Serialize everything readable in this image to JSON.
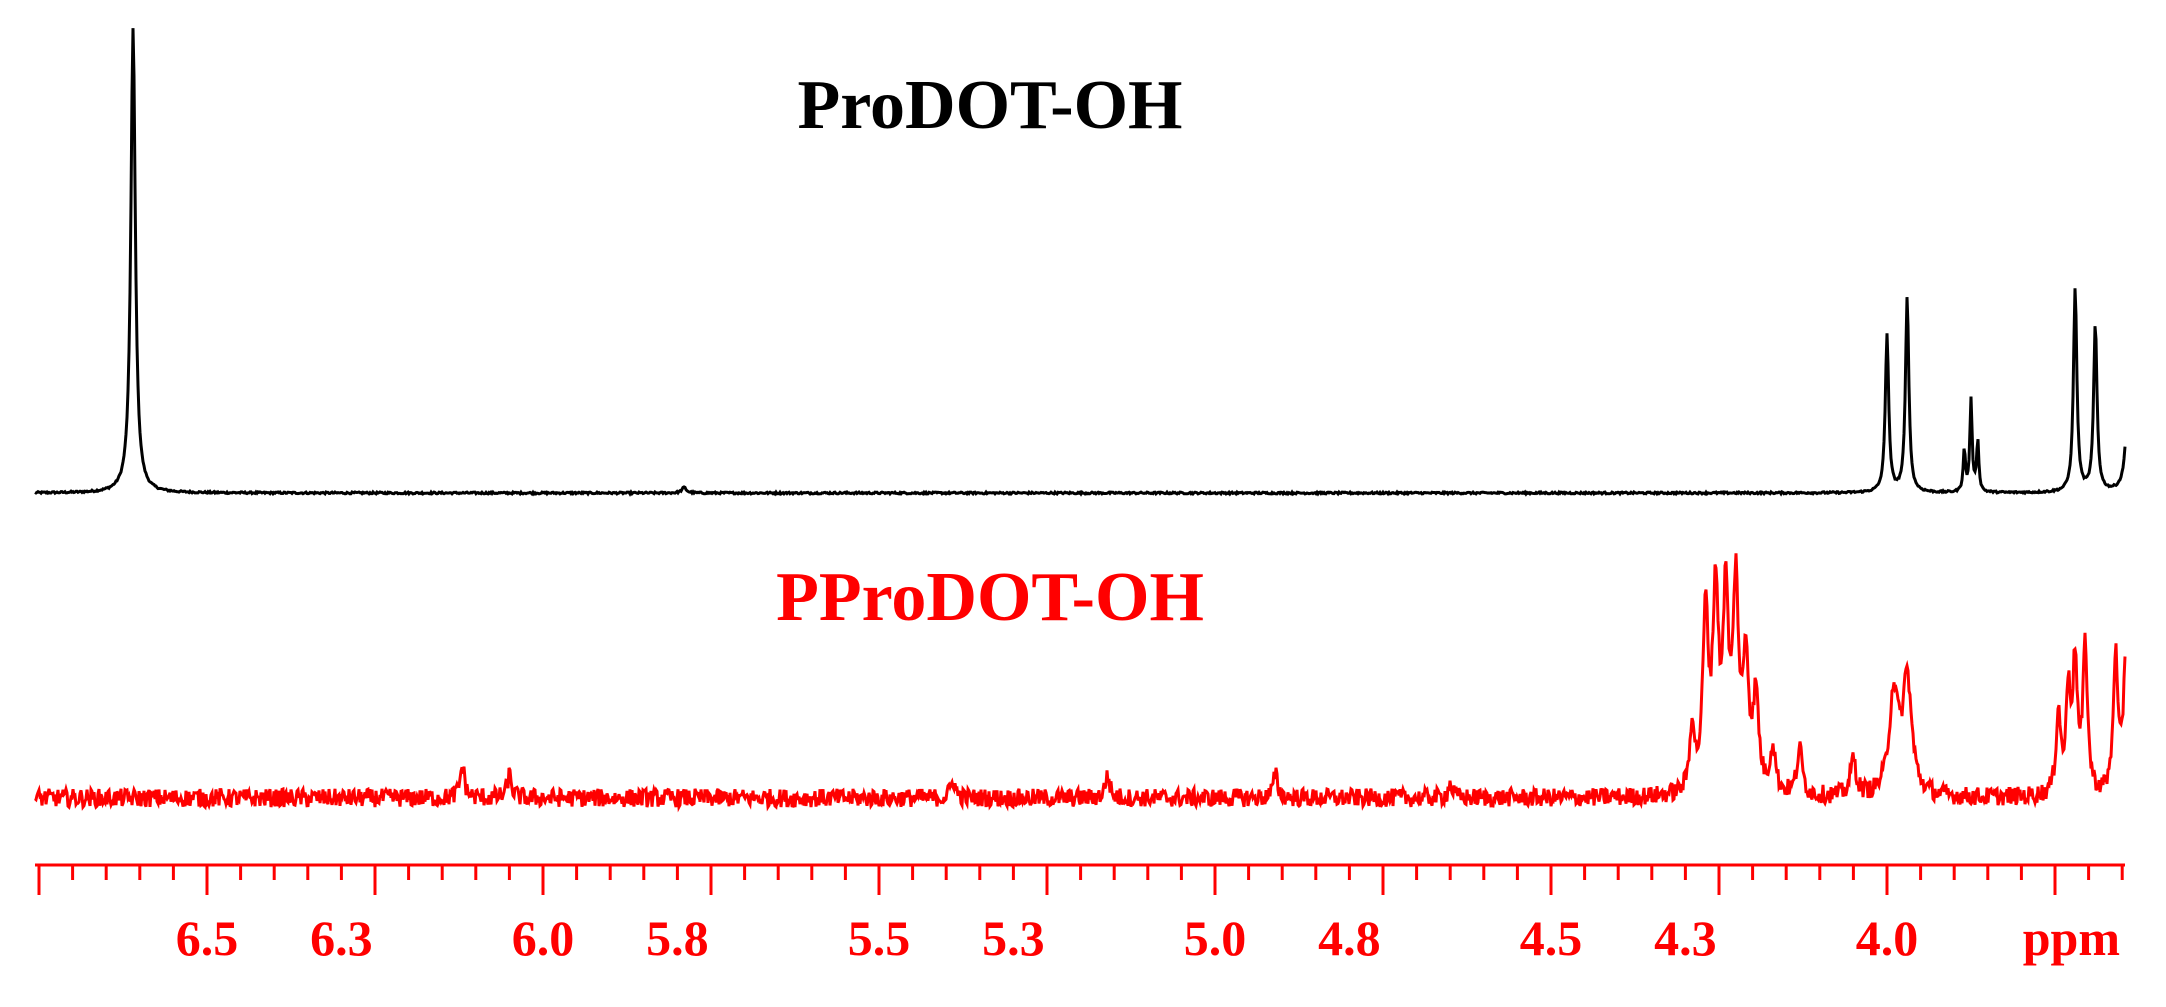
{
  "chart_data": {
    "type": "line",
    "title": "",
    "xlabel": "ppm",
    "ylabel": "",
    "x_reversed": true,
    "xlim": [
      6.85,
      3.6
    ],
    "grid": false,
    "tick_labels": [
      "6.5",
      "6.3",
      "6.0",
      "5.8",
      "5.5",
      "5.3",
      "5.0",
      "4.8",
      "4.5",
      "4.3",
      "4.0"
    ],
    "series": [
      {
        "name": "ProDOT-OH",
        "color": "#000000",
        "baseline_noise": 0.002,
        "peaks": [
          {
            "ppm": 6.61,
            "height": 1.0,
            "width": 0.004
          },
          {
            "ppm": 5.79,
            "height": 0.012,
            "width": 0.004
          },
          {
            "ppm": 4.0,
            "height": 0.34,
            "width": 0.003
          },
          {
            "ppm": 3.97,
            "height": 0.42,
            "width": 0.003
          },
          {
            "ppm": 3.885,
            "height": 0.09,
            "width": 0.002
          },
          {
            "ppm": 3.875,
            "height": 0.2,
            "width": 0.002
          },
          {
            "ppm": 3.865,
            "height": 0.11,
            "width": 0.002
          },
          {
            "ppm": 3.72,
            "height": 0.44,
            "width": 0.003
          },
          {
            "ppm": 3.69,
            "height": 0.36,
            "width": 0.003
          },
          {
            "ppm": 3.64,
            "height": 0.41,
            "width": 0.003
          },
          {
            "ppm": 3.63,
            "height": 0.39,
            "width": 0.003
          }
        ]
      },
      {
        "name": "PProDOT-OH",
        "color": "#ff0000",
        "baseline_noise": 0.02,
        "peaks": [
          {
            "ppm": 6.12,
            "height": 0.07,
            "width": 0.004
          },
          {
            "ppm": 6.05,
            "height": 0.05,
            "width": 0.004
          },
          {
            "ppm": 5.39,
            "height": 0.04,
            "width": 0.004
          },
          {
            "ppm": 5.16,
            "height": 0.05,
            "width": 0.004
          },
          {
            "ppm": 4.91,
            "height": 0.05,
            "width": 0.004
          },
          {
            "ppm": 4.65,
            "height": 0.03,
            "width": 0.004
          },
          {
            "ppm": 4.29,
            "height": 0.15,
            "width": 0.004
          },
          {
            "ppm": 4.27,
            "height": 0.38,
            "width": 0.005
          },
          {
            "ppm": 4.255,
            "height": 0.42,
            "width": 0.005
          },
          {
            "ppm": 4.24,
            "height": 0.4,
            "width": 0.005
          },
          {
            "ppm": 4.225,
            "height": 0.43,
            "width": 0.005
          },
          {
            "ppm": 4.21,
            "height": 0.28,
            "width": 0.005
          },
          {
            "ppm": 4.195,
            "height": 0.2,
            "width": 0.005
          },
          {
            "ppm": 4.17,
            "height": 0.1,
            "width": 0.005
          },
          {
            "ppm": 4.13,
            "height": 0.1,
            "width": 0.005
          },
          {
            "ppm": 4.05,
            "height": 0.08,
            "width": 0.005
          },
          {
            "ppm": 3.99,
            "height": 0.22,
            "width": 0.008
          },
          {
            "ppm": 3.97,
            "height": 0.25,
            "width": 0.008
          },
          {
            "ppm": 3.745,
            "height": 0.18,
            "width": 0.004
          },
          {
            "ppm": 3.73,
            "height": 0.22,
            "width": 0.004
          },
          {
            "ppm": 3.72,
            "height": 0.28,
            "width": 0.004
          },
          {
            "ppm": 3.705,
            "height": 0.32,
            "width": 0.004
          },
          {
            "ppm": 3.66,
            "height": 0.3,
            "width": 0.004
          },
          {
            "ppm": 3.645,
            "height": 0.28,
            "width": 0.004
          },
          {
            "ppm": 3.63,
            "height": 0.22,
            "width": 0.004
          },
          {
            "ppm": 3.615,
            "height": 0.18,
            "width": 0.004
          }
        ]
      }
    ]
  }
}
